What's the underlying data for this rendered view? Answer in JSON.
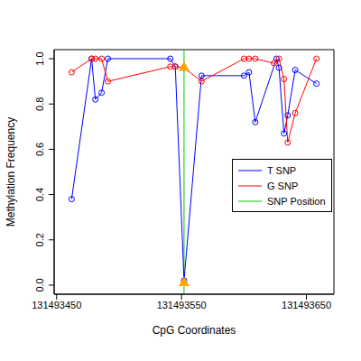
{
  "chart_data": {
    "type": "line",
    "x_label": "CpG Coordinates",
    "y_label": "Methylation Frequency",
    "xlim": [
      131493448,
      131493672
    ],
    "xticks": [
      131493450,
      131493550,
      131493650
    ],
    "ylim": [
      -0.04,
      1.04
    ],
    "yticks": [
      {
        "value": 0,
        "label": "0.0"
      },
      0.2,
      0.4,
      0.6,
      0.8,
      {
        "value": 1,
        "label": "1.0"
      }
    ],
    "grid": false,
    "legend": "right",
    "series": [
      {
        "name": "T SNP",
        "color": "#0000ff",
        "marker": "circle",
        "line_style": "solid",
        "x": [
          131493462,
          131493478,
          131493481,
          131493486,
          131493491,
          131493541,
          131493545,
          131493552,
          131493566,
          131493600,
          131493604,
          131493609,
          131493626,
          131493628,
          131493632,
          131493635,
          131493641,
          131493658
        ],
        "values": [
          0.38,
          1.0,
          0.82,
          0.85,
          1.0,
          1.0,
          0.965,
          0.02,
          0.925,
          0.925,
          0.94,
          0.72,
          1.0,
          0.96,
          0.67,
          0.75,
          0.95,
          0.89
        ]
      },
      {
        "name": "G SNP",
        "color": "#ff0000",
        "marker": "circle",
        "line_style": "solid",
        "x": [
          131493462,
          131493478,
          131493481,
          131493486,
          131493491,
          131493541,
          131493545,
          131493552,
          131493566,
          131493600,
          131493604,
          131493609,
          131493624,
          131493628,
          131493632,
          131493635,
          131493641,
          131493658
        ],
        "values": [
          0.94,
          1.0,
          1.0,
          1.0,
          0.9,
          0.965,
          0.965,
          0.96,
          0.9,
          1.0,
          1.0,
          1.0,
          0.98,
          1.0,
          0.91,
          0.63,
          0.76,
          1.0
        ]
      }
    ],
    "snp": {
      "name": "SNP Position",
      "x": 131493552,
      "color": "#00cc00",
      "markers": {
        "color": "#ffa500",
        "marker": "triangle",
        "values": [
          0.01,
          0.96
        ]
      }
    }
  }
}
